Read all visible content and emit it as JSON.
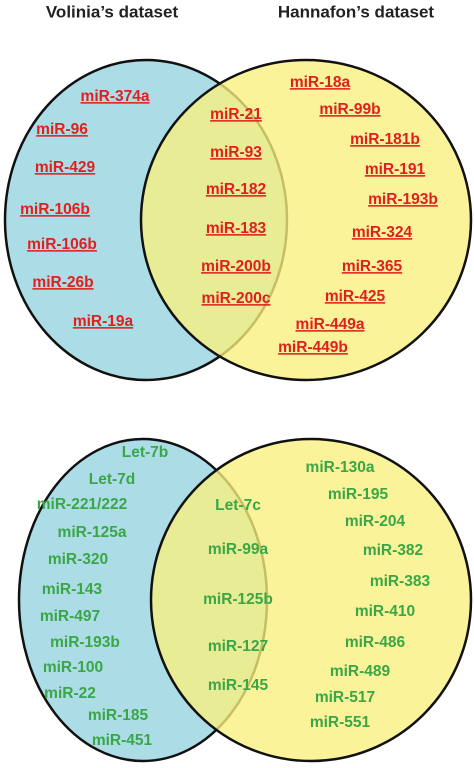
{
  "header": {
    "left_title": "Volinia’s dataset",
    "right_title": "Hannafon’s dataset"
  },
  "venns": [
    {
      "left_only": [
        "miR-374a",
        "miR-96",
        "miR-429",
        "miR-106b",
        "miR-106b",
        "miR-26b",
        "miR-19a"
      ],
      "intersection": [
        "miR-21",
        "miR-93",
        "miR-182",
        "miR-183",
        "miR-200b",
        "miR-200c"
      ],
      "right_only": [
        "miR-18a",
        "miR-99b",
        "miR-181b",
        "miR-191",
        "miR-193b",
        "miR-324",
        "miR-365",
        "miR-425",
        "miR-449a",
        "miR-449b"
      ]
    },
    {
      "left_only": [
        "Let-7b",
        "Let-7d",
        "miR-221/222",
        "miR-125a",
        "miR-320",
        "miR-143",
        "miR-497",
        "miR-193b",
        "miR-100",
        "miR-22",
        "miR-185",
        "miR-451"
      ],
      "intersection": [
        "Let-7c",
        "miR-99a",
        "miR-125b",
        "miR-127",
        "miR-145"
      ],
      "right_only": [
        "miR-130a",
        "miR-195",
        "miR-204",
        "miR-382",
        "miR-383",
        "miR-410",
        "miR-486",
        "miR-489",
        "miR-517",
        "miR-551"
      ]
    }
  ]
}
